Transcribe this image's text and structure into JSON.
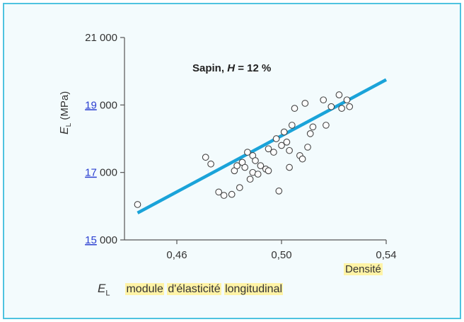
{
  "chart_data": {
    "type": "scatter",
    "title": "Sapin, H = 12 %",
    "title_parts": {
      "species": "Sapin, ",
      "var": "H",
      "rest": " = 12 %"
    },
    "xlabel": "Densité",
    "ylabel": "E_L (MPa)",
    "ylabel_parts": {
      "sym": "E",
      "sub": "L",
      "unit": " (MPa)"
    },
    "xlim": [
      0.44,
      0.54
    ],
    "ylim": [
      15000,
      21000
    ],
    "x_ticks": [
      0.46,
      0.5,
      0.54
    ],
    "x_tick_labels": [
      "0,46",
      "0,50",
      "0,54"
    ],
    "y_ticks": [
      15000,
      17000,
      19000,
      21000
    ],
    "y_tick_labels": [
      "15 000",
      "17 000",
      "19 000",
      "21 000"
    ],
    "y_tick_link_parts": [
      "15",
      "17",
      "19",
      ""
    ],
    "y_tick_rest_parts": [
      " 000",
      " 000",
      " 000",
      "21 000"
    ],
    "grid": false,
    "series": [
      {
        "marker": "open-circle",
        "color": "#444444",
        "points": [
          [
            0.445,
            16050
          ],
          [
            0.471,
            17450
          ],
          [
            0.473,
            17250
          ],
          [
            0.476,
            16420
          ],
          [
            0.478,
            16320
          ],
          [
            0.481,
            16350
          ],
          [
            0.482,
            17050
          ],
          [
            0.483,
            17200
          ],
          [
            0.484,
            16550
          ],
          [
            0.485,
            17300
          ],
          [
            0.486,
            17150
          ],
          [
            0.487,
            17600
          ],
          [
            0.488,
            16800
          ],
          [
            0.489,
            17500
          ],
          [
            0.489,
            17000
          ],
          [
            0.49,
            17350
          ],
          [
            0.491,
            16950
          ],
          [
            0.492,
            17200
          ],
          [
            0.494,
            17100
          ],
          [
            0.495,
            17050
          ],
          [
            0.495,
            17700
          ],
          [
            0.497,
            17600
          ],
          [
            0.498,
            18000
          ],
          [
            0.499,
            16450
          ],
          [
            0.5,
            17800
          ],
          [
            0.501,
            18200
          ],
          [
            0.502,
            17900
          ],
          [
            0.503,
            17650
          ],
          [
            0.503,
            17150
          ],
          [
            0.504,
            18400
          ],
          [
            0.505,
            18900
          ],
          [
            0.507,
            17500
          ],
          [
            0.508,
            17400
          ],
          [
            0.509,
            19050
          ],
          [
            0.51,
            17750
          ],
          [
            0.511,
            18150
          ],
          [
            0.512,
            18350
          ],
          [
            0.516,
            19150
          ],
          [
            0.517,
            18400
          ],
          [
            0.519,
            18950
          ],
          [
            0.522,
            19300
          ],
          [
            0.523,
            18900
          ],
          [
            0.525,
            19150
          ],
          [
            0.526,
            18950
          ]
        ]
      }
    ],
    "regression_line": {
      "color": "#1aa3d9",
      "x": [
        0.445,
        0.54
      ],
      "y": [
        15800,
        19750
      ]
    }
  },
  "caption": {
    "symbol": "E",
    "symbol_sub": "L",
    "words": [
      "module",
      "d'élasticité",
      "longitudinal"
    ]
  }
}
